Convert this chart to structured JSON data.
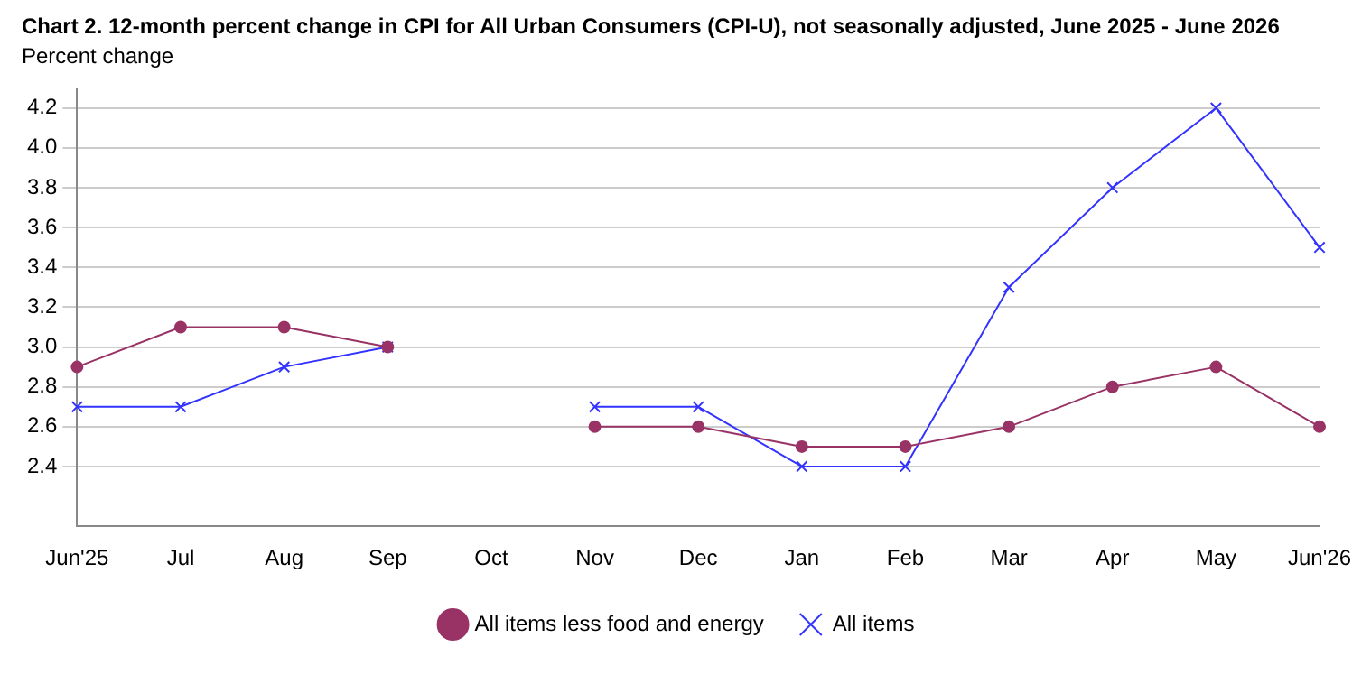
{
  "chart_data": {
    "type": "line",
    "title": "Chart 2. 12-month percent change in CPI for All Urban Consumers (CPI-U), not seasonally adjusted, June 2025 - June 2026",
    "ylabel": "Percent change",
    "categories": [
      "Jun'25",
      "Jul",
      "Aug",
      "Sep",
      "Oct",
      "Nov",
      "Dec",
      "Jan",
      "Feb",
      "Mar",
      "Apr",
      "May",
      "Jun'26"
    ],
    "series": [
      {
        "name": "All items",
        "color": "#3333ff",
        "marker": "cross",
        "values": [
          2.7,
          2.7,
          2.9,
          3.0,
          null,
          2.7,
          2.7,
          2.4,
          2.4,
          3.3,
          3.8,
          4.2,
          3.5
        ]
      },
      {
        "name": "All items less food and energy",
        "color": "#993366",
        "marker": "circle",
        "values": [
          2.9,
          3.1,
          3.1,
          3.0,
          null,
          2.6,
          2.6,
          2.5,
          2.5,
          2.6,
          2.8,
          2.9,
          2.6
        ]
      }
    ],
    "ylim": [
      2.1,
      4.3
    ],
    "yticks": [
      2.4,
      2.6,
      2.8,
      {
        "value": 3,
        "label": "3.0"
      },
      3.2,
      3.4,
      3.6,
      3.8,
      {
        "value": 4,
        "label": "4.0"
      },
      4.2
    ],
    "grid": "y",
    "legend": "bottom",
    "line_style": "solid"
  }
}
